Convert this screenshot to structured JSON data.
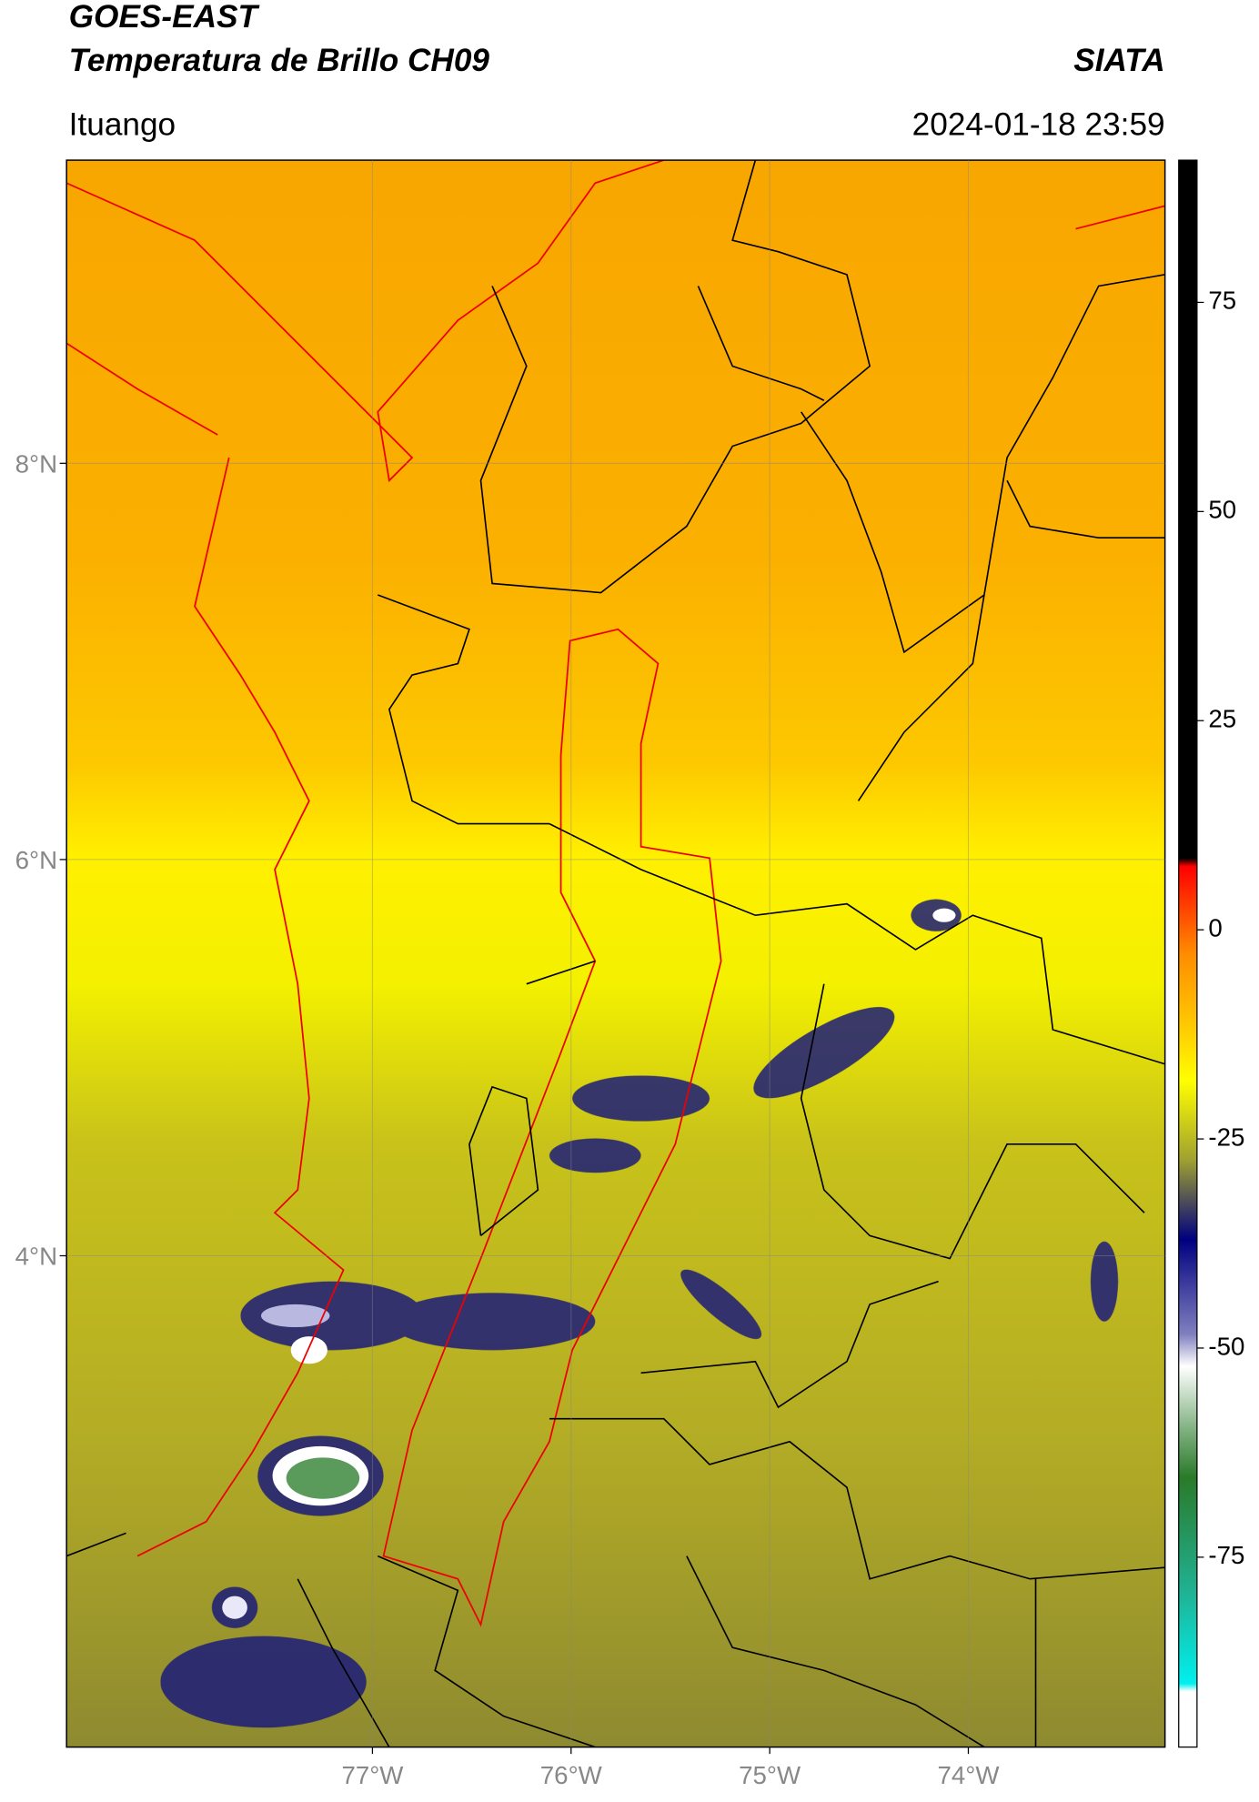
{
  "header": {
    "title_line1": "GOES-EAST",
    "title_line2": "Temperatura de Brillo CH09",
    "source": "SIATA",
    "region": "Ituango",
    "timestamp": "2024-01-18 23:59"
  },
  "chart_data": {
    "type": "map",
    "xlim": [
      -78.54,
      -73.01
    ],
    "ylim": [
      1.52,
      9.53
    ],
    "xticks": [
      {
        "value": -77,
        "label": "77°W"
      },
      {
        "value": -76,
        "label": "76°W"
      },
      {
        "value": -75,
        "label": "75°W"
      },
      {
        "value": -74,
        "label": "74°W"
      }
    ],
    "yticks": [
      {
        "value": 8,
        "label": "8°N"
      },
      {
        "value": 6,
        "label": "6°N"
      },
      {
        "value": 4,
        "label": "4°N"
      }
    ],
    "grid": true,
    "colorbar": {
      "lim": [
        -97.7,
        92
      ],
      "ticks": [
        75,
        50,
        25,
        0,
        -25,
        -50,
        -75
      ]
    }
  }
}
